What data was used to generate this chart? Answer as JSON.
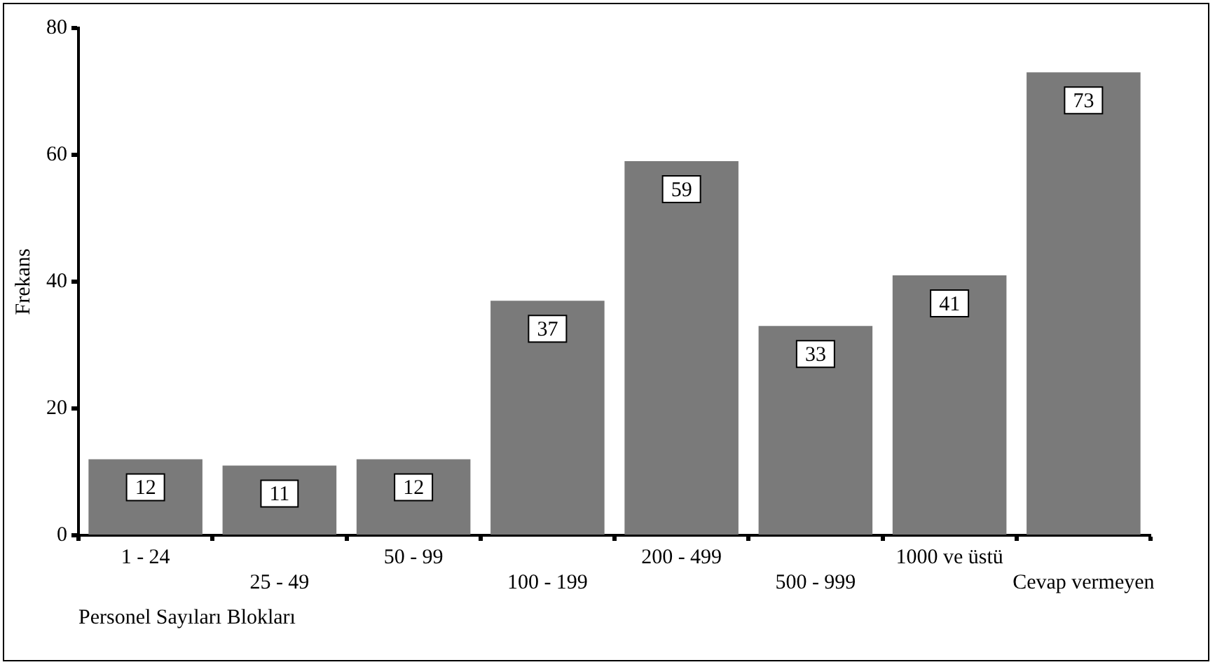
{
  "chart_data": {
    "type": "bar",
    "xlabel": "Personel Sayıları Blokları",
    "ylabel": "Frekans",
    "categories": [
      "1 - 24",
      "25 - 49",
      "50 - 99",
      "100 - 199",
      "200 - 499",
      "500 - 999",
      "1000 ve üstü",
      "Cevap vermeyen"
    ],
    "values": [
      12,
      11,
      12,
      37,
      59,
      33,
      41,
      73
    ],
    "color": "#7a7a7a",
    "ylim": [
      0,
      80
    ],
    "yticks": [
      0,
      20,
      40,
      60,
      80
    ],
    "grid": false,
    "legend": false,
    "data_labels": true
  }
}
